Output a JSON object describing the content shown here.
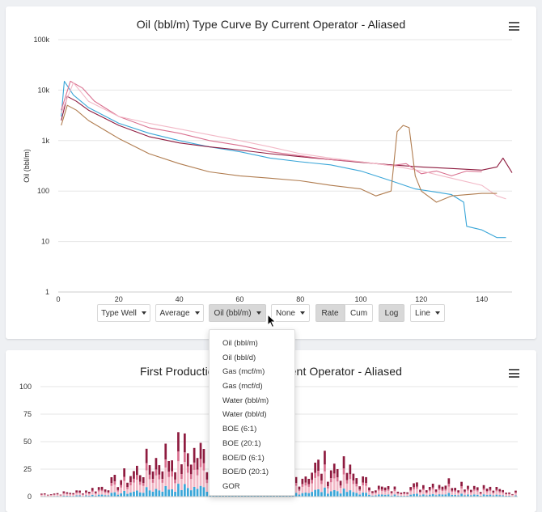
{
  "chart1": {
    "title": "Oil (bbl/m) Type Curve By Current Operator - Aliased",
    "ylabel": "Oil (bbl/m)",
    "y_ticks": [
      "100k",
      "10k",
      "1k",
      "100",
      "10",
      "1"
    ],
    "x_ticks": [
      "0",
      "20",
      "40",
      "60",
      "80",
      "100",
      "120",
      "140"
    ]
  },
  "controls": {
    "type_well": "Type Well",
    "average": "Average",
    "oil": "Oil (bbl/m)",
    "none": "None",
    "rate": "Rate",
    "cum": "Cum",
    "log": "Log",
    "line": "Line"
  },
  "dropdown_options": [
    "Oil (bbl/m)",
    "Oil (bbl/d)",
    "Gas (mcf/m)",
    "Gas (mcf/d)",
    "Water (bbl/m)",
    "Water (bbl/d)",
    "BOE (6:1)",
    "BOE (20:1)",
    "BOE/D (6:1)",
    "BOE/D (20:1)",
    "GOR"
  ],
  "chart2": {
    "title": "First Production Date By Current Operator - Aliased",
    "y_ticks": [
      "100",
      "75",
      "50",
      "25",
      "0"
    ]
  },
  "colors": {
    "blue": "#3aa6d8",
    "dark_red": "#8e1b3f",
    "pink": "#d9708f",
    "light_pink": "#f2b8c6",
    "brown": "#b07c4f"
  },
  "chart_data": [
    {
      "type": "line",
      "title": "Oil (bbl/m) Type Curve By Current Operator - Aliased",
      "ylabel": "Oil (bbl/m)",
      "xlim": [
        0,
        150
      ],
      "ylim": [
        1,
        100000
      ],
      "yscale": "log",
      "grid": true,
      "series": [
        {
          "color": "#3aa6d8",
          "x": [
            1,
            2,
            5,
            10,
            20,
            30,
            40,
            50,
            60,
            70,
            80,
            90,
            100,
            110,
            118,
            125,
            130,
            134,
            135,
            140,
            145,
            148
          ],
          "y": [
            3000,
            15000,
            8000,
            4500,
            2200,
            1400,
            1000,
            750,
            600,
            450,
            380,
            330,
            250,
            160,
            110,
            95,
            85,
            60,
            20,
            17,
            12,
            12
          ]
        },
        {
          "color": "#8e1b3f",
          "x": [
            1,
            3,
            6,
            10,
            20,
            30,
            40,
            50,
            60,
            70,
            80,
            90,
            100,
            110,
            120,
            130,
            140,
            145,
            147,
            150
          ],
          "y": [
            2500,
            7500,
            6000,
            4000,
            2000,
            1200,
            900,
            750,
            650,
            550,
            480,
            420,
            370,
            330,
            300,
            280,
            260,
            300,
            450,
            230
          ]
        },
        {
          "color": "#d9708f",
          "x": [
            1,
            4,
            8,
            12,
            20,
            30,
            40,
            50,
            60,
            70,
            80,
            90,
            100,
            110,
            115,
            120,
            125,
            130,
            135,
            140
          ],
          "y": [
            4000,
            15000,
            11000,
            6000,
            3000,
            1800,
            1400,
            1000,
            800,
            600,
            500,
            420,
            380,
            320,
            350,
            220,
            250,
            200,
            250,
            240
          ]
        },
        {
          "color": "#f2b8c6",
          "x": [
            1,
            5,
            10,
            20,
            30,
            40,
            50,
            60,
            70,
            80,
            90,
            100,
            110,
            120,
            130,
            140,
            145,
            148
          ],
          "y": [
            3500,
            14000,
            6000,
            3000,
            2200,
            1700,
            1300,
            1000,
            750,
            550,
            450,
            380,
            320,
            250,
            180,
            130,
            80,
            70
          ]
        },
        {
          "color": "#b07c4f",
          "x": [
            1,
            3,
            6,
            10,
            20,
            30,
            40,
            50,
            60,
            70,
            80,
            90,
            100,
            105,
            110,
            112,
            114,
            116,
            118,
            120,
            125,
            130,
            140,
            145
          ],
          "y": [
            2000,
            5000,
            4000,
            2500,
            1100,
            550,
            350,
            240,
            200,
            180,
            160,
            130,
            110,
            80,
            100,
            1500,
            2000,
            1800,
            200,
            100,
            60,
            80,
            90,
            90
          ]
        }
      ]
    },
    {
      "type": "bar",
      "title": "First Production Date By Current Operator - Aliased",
      "ylim": [
        0,
        100
      ],
      "stacked": true,
      "note": "Stacked monthly bars by operator; values approximated"
    }
  ]
}
